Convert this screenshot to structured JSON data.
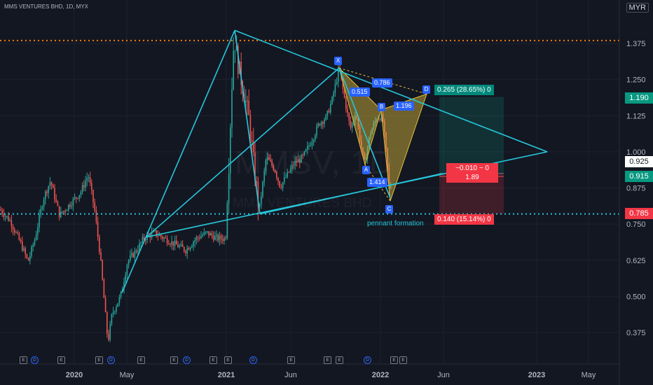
{
  "header": {
    "title": "MMS VENTURES BHD, 1D, MYX",
    "currency": "MYR"
  },
  "watermark": {
    "symbol": "MMSV, 1D",
    "name": "MMS VENTURES BHD"
  },
  "colors": {
    "pattern": "#26c6da",
    "bull": "#26a69a",
    "bear": "#ef5350",
    "accent": "#2962ff",
    "level_high": "#f57c00"
  },
  "chart_data": {
    "type": "candlestick",
    "title": "MMS VENTURES BHD, 1D, MYX",
    "ylim": [
      0.3,
      1.45
    ],
    "yticks": [
      "1.375",
      "1.250",
      "1.125",
      "1.000",
      "0.875",
      "0.750",
      "0.625",
      "0.500",
      "0.375"
    ],
    "xticks": [
      "2020",
      "May",
      "2021",
      "Jun",
      "2022",
      "Jun",
      "2023",
      "May"
    ],
    "price_labels": [
      {
        "value": "1.190",
        "kind": "bull"
      },
      {
        "value": "0.925",
        "kind": "last"
      },
      {
        "value": "0.915",
        "kind": "bull"
      },
      {
        "value": "0.785",
        "kind": "bear"
      }
    ],
    "horizontal_levels": [
      {
        "price": 1.385,
        "style": "dotted",
        "color": "#f57c00"
      },
      {
        "price": 0.785,
        "style": "dotted",
        "color": "#26c6da"
      }
    ],
    "harmonic_points": [
      {
        "label": "X",
        "price": 1.29
      },
      {
        "label": "A",
        "price": 0.955
      },
      {
        "label": "B",
        "price": 1.145
      },
      {
        "label": "C",
        "price": 0.83
      },
      {
        "label": "D",
        "price": 1.2
      }
    ],
    "ratios": [
      "0.786",
      "0.515",
      "1.196",
      "1.414"
    ],
    "position": {
      "target_label": "0.265 (28.65%) 0",
      "stop_label": "0.140 (15.14%) 0",
      "current_label": "−0.010 ~ 0",
      "current_ratio": "1.89"
    },
    "annotation": "pennant formation",
    "events_row": [
      "E",
      "D",
      "E",
      "E",
      "D",
      "E",
      "E",
      "D",
      "E",
      "E",
      "D",
      "E",
      "E",
      "E",
      "D",
      "E",
      "E"
    ]
  }
}
